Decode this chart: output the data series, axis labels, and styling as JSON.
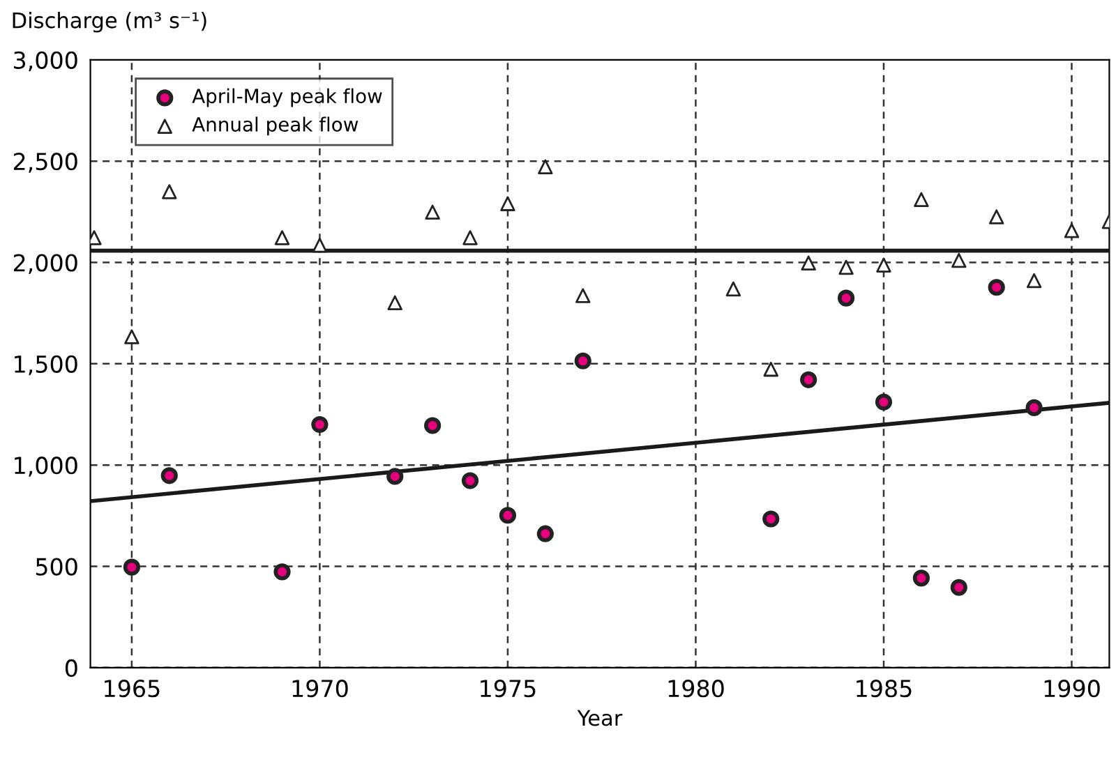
{
  "chart_data": {
    "type": "scatter",
    "xlabel": "Year",
    "ylabel": "Discharge (m³ s⁻¹)",
    "xlim": [
      1963.9,
      1991
    ],
    "ylim": [
      0,
      3000
    ],
    "xticks": [
      1965,
      1970,
      1975,
      1980,
      1985,
      1990
    ],
    "yticks": [
      0,
      {
        "value": 500,
        "label": "500"
      },
      {
        "value": 1000,
        "label": "1,000"
      },
      {
        "value": 1500,
        "label": "1,500"
      },
      {
        "value": 2000,
        "label": "2,000"
      },
      {
        "value": 2500,
        "label": "2,500"
      },
      {
        "value": 3000,
        "label": "3,000"
      }
    ],
    "grid": true,
    "legend": "top left",
    "series": [
      {
        "name": "April-May peak flow",
        "marker": "circle",
        "color": "#e6007e",
        "x": [
          1965,
          1966,
          1969,
          1970,
          1972,
          1973,
          1974,
          1975,
          1976,
          1977,
          1982,
          1983,
          1984,
          1985,
          1986,
          1987,
          1988,
          1989
        ],
        "values": [
          496,
          948,
          473,
          1200,
          944,
          1195,
          923,
          752,
          661,
          1514,
          734,
          1421,
          1824,
          1311,
          442,
          396,
          1877,
          1283
        ]
      },
      {
        "name": "Annual peak flow",
        "marker": "triangle",
        "color": "#ffffff",
        "x": [
          1964,
          1965,
          1966,
          1969,
          1970,
          1972,
          1973,
          1974,
          1975,
          1976,
          1977,
          1981,
          1982,
          1983,
          1984,
          1985,
          1986,
          1987,
          1988,
          1989,
          1990,
          1991
        ],
        "values": [
          2122,
          1633,
          2349,
          2122,
          2085,
          1801,
          2248,
          2122,
          2290,
          2472,
          1836,
          1869,
          1473,
          1997,
          1976,
          1987,
          2310,
          2010,
          2225,
          1910,
          2157,
          2202
        ]
      },
      {
        "type": "line",
        "line_style": "solid",
        "color": "#1a1a1a",
        "x": [
          1963.9,
          1991
        ],
        "values": [
          2058,
          2058
        ]
      },
      {
        "type": "line",
        "line_style": "solid",
        "color": "#1a1a1a",
        "x": [
          1963.9,
          1991
        ],
        "values": [
          822,
          1307
        ]
      }
    ]
  }
}
